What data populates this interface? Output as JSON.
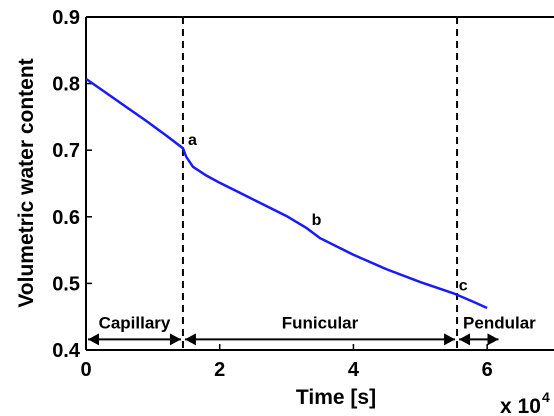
{
  "chart_data": {
    "type": "line",
    "xlabel": "Time [s]",
    "ylabel": "Volumetric water content",
    "x_multiplier_label": "x 10",
    "x_multiplier_exponent": "4",
    "xlim": [
      0,
      7
    ],
    "ylim": [
      0.4,
      0.9
    ],
    "x_ticks": [
      0,
      2,
      4,
      6
    ],
    "x_tick_labels": [
      "0",
      "2",
      "4",
      "6"
    ],
    "y_ticks": [
      0.4,
      0.5,
      0.6,
      0.7,
      0.8,
      0.9
    ],
    "y_tick_labels": [
      "0.4",
      "0.5",
      "0.6",
      "0.7",
      "0.8",
      "0.9"
    ],
    "grid": false,
    "series": [
      {
        "color": "#1a1aff",
        "x": [
          0,
          0.3,
          0.6,
          0.9,
          1.2,
          1.45,
          1.5,
          1.6,
          1.8,
          2.0,
          2.3,
          2.6,
          3.0,
          3.3,
          3.5,
          4.0,
          4.5,
          5.0,
          5.5,
          5.8,
          6.0
        ],
        "y": [
          0.807,
          0.786,
          0.765,
          0.744,
          0.722,
          0.703,
          0.69,
          0.675,
          0.662,
          0.651,
          0.636,
          0.621,
          0.601,
          0.583,
          0.568,
          0.543,
          0.521,
          0.502,
          0.485,
          0.472,
          0.463
        ]
      }
    ],
    "vlines": [
      {
        "x": 1.45,
        "style": "dashed"
      },
      {
        "x": 5.55,
        "style": "dashed"
      }
    ],
    "points": [
      {
        "label": "a",
        "x": 1.45,
        "y": 0.703
      },
      {
        "label": "b",
        "x": 3.3,
        "y": 0.583
      },
      {
        "label": "c",
        "x": 5.5,
        "y": 0.485
      }
    ],
    "regions": [
      {
        "label": "Capillary",
        "x_start": 0,
        "x_end": 1.45
      },
      {
        "label": "Funicular",
        "x_start": 1.45,
        "x_end": 5.55
      },
      {
        "label": "Pendular",
        "x_start": 5.55,
        "x_end": 6.2
      }
    ],
    "region_arrow_y": 0.416
  }
}
